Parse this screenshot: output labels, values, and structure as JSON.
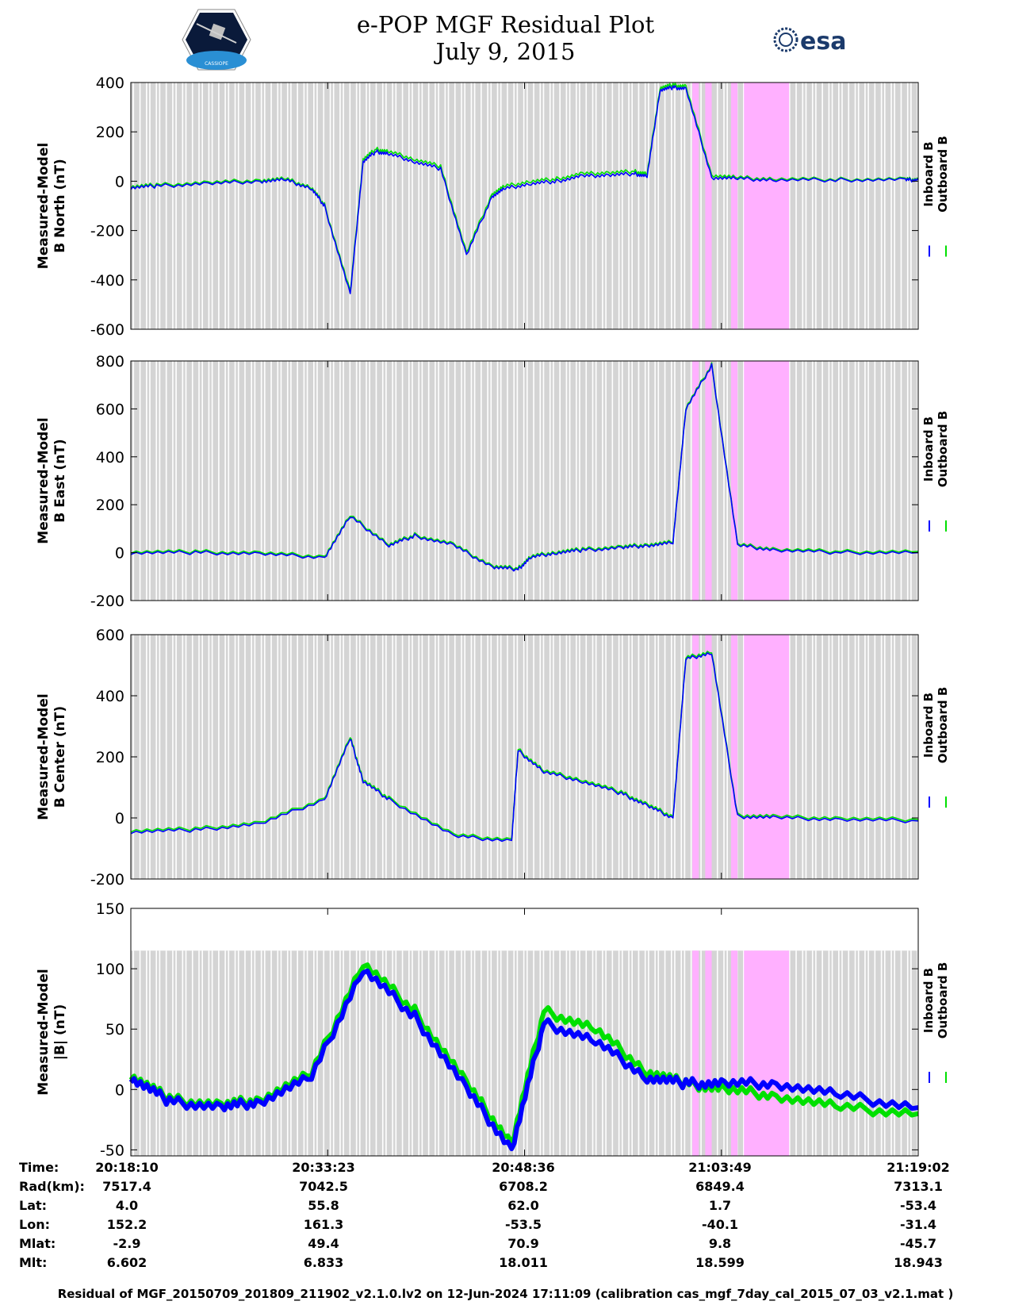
{
  "header": {
    "title": "e-POP MGF Residual Plot",
    "date": "July 9, 2015",
    "logo_left": "CASSIOPE",
    "logo_right": "esa"
  },
  "legend": {
    "inboard": "Inboard B",
    "outboard": "Outboard B"
  },
  "colors": {
    "inboard": "#0000ff",
    "outboard": "#00e000",
    "shade_gray": "#d4d4d4",
    "shade_pink": "#ffb0ff",
    "frame": "#000000"
  },
  "chart_data": [
    {
      "type": "line",
      "ylabel_line1": "Measured-Model",
      "ylabel_line2": "B North (nT)",
      "ylim": [
        -600,
        400
      ],
      "yticks": [
        -600,
        -400,
        -200,
        0,
        200,
        400
      ],
      "x_minutes": [
        0,
        2,
        6,
        10,
        12,
        14,
        15,
        17,
        18,
        19,
        20,
        22,
        24,
        26,
        28,
        29,
        31,
        33,
        35,
        37,
        39,
        40,
        41,
        42,
        43,
        45,
        47,
        50,
        55,
        60,
        61
      ],
      "series": [
        {
          "name": "Inboard B",
          "values": [
            -25,
            -20,
            -10,
            0,
            5,
            -30,
            -100,
            -460,
            80,
            120,
            110,
            80,
            50,
            -300,
            -60,
            -30,
            -10,
            0,
            20,
            25,
            30,
            20,
            370,
            380,
            375,
            15,
            10,
            5,
            5,
            5,
            5
          ]
        },
        {
          "name": "Outboard B",
          "values": [
            -20,
            -15,
            -5,
            5,
            10,
            -25,
            -95,
            -450,
            90,
            130,
            120,
            90,
            60,
            -290,
            -50,
            -20,
            0,
            10,
            30,
            35,
            40,
            30,
            380,
            390,
            385,
            25,
            15,
            10,
            8,
            8,
            8
          ]
        }
      ]
    },
    {
      "type": "line",
      "ylabel_line1": "Measured-Model",
      "ylabel_line2": "B East (nT)",
      "ylim": [
        -200,
        800
      ],
      "yticks": [
        -200,
        0,
        200,
        400,
        600,
        800
      ],
      "x_minutes": [
        0,
        5,
        10,
        15,
        17,
        20,
        22,
        25,
        28,
        30,
        31,
        33,
        35,
        38,
        40,
        42,
        43,
        45,
        47,
        50,
        55,
        61
      ],
      "series": [
        {
          "name": "Inboard B",
          "values": [
            0,
            0,
            -5,
            -20,
            150,
            30,
            70,
            30,
            -60,
            -70,
            -20,
            0,
            10,
            20,
            30,
            40,
            600,
            780,
            30,
            10,
            0,
            0
          ]
        },
        {
          "name": "Outboard B",
          "values": [
            5,
            5,
            0,
            -15,
            155,
            35,
            75,
            35,
            -55,
            -65,
            -15,
            5,
            15,
            25,
            35,
            45,
            605,
            785,
            35,
            15,
            5,
            5
          ]
        }
      ]
    },
    {
      "type": "line",
      "ylabel_line1": "Measured-Model",
      "ylabel_line2": "B Center (nT)",
      "ylim": [
        -200,
        600
      ],
      "yticks": [
        -200,
        0,
        200,
        400,
        600
      ],
      "x_minutes": [
        0,
        5,
        10,
        15,
        17,
        18,
        20,
        25,
        29.5,
        30,
        32,
        35,
        38,
        40,
        42,
        43,
        45,
        47,
        50,
        55,
        61
      ],
      "series": [
        {
          "name": "Inboard B",
          "values": [
            -45,
            -40,
            -20,
            60,
            260,
            120,
            60,
            -60,
            -75,
            220,
            150,
            120,
            80,
            40,
            0,
            520,
            540,
            5,
            0,
            -5,
            -10
          ]
        },
        {
          "name": "Outboard B",
          "values": [
            -40,
            -35,
            -15,
            65,
            265,
            125,
            65,
            -55,
            -70,
            225,
            155,
            125,
            85,
            45,
            5,
            525,
            545,
            10,
            5,
            0,
            -5
          ]
        }
      ]
    },
    {
      "type": "line",
      "ylabel_line1": "Measured-Model",
      "ylabel_line2": "|B| (nT)",
      "ylim": [
        -55,
        150
      ],
      "yticks": [
        -50,
        0,
        50,
        100,
        150
      ],
      "x_minutes": [
        0,
        3,
        7,
        10,
        14,
        18,
        22,
        26,
        29.5,
        32,
        36,
        40,
        43,
        46,
        50,
        55,
        61
      ],
      "series": [
        {
          "name": "Inboard B",
          "values": [
            10,
            -10,
            -15,
            -10,
            10,
            100,
            60,
            0,
            -50,
            55,
            40,
            10,
            5,
            5,
            5,
            -5,
            -15
          ]
        },
        {
          "name": "Outboard B",
          "values": [
            12,
            -8,
            -13,
            -8,
            13,
            105,
            65,
            5,
            -45,
            65,
            50,
            15,
            5,
            0,
            -5,
            -15,
            -20
          ]
        }
      ]
    }
  ],
  "x_axis": {
    "range_minutes": [
      0,
      61
    ],
    "pink_bands_minutes": [
      [
        43.5,
        44.0
      ],
      [
        44.5,
        45.0
      ],
      [
        46.5,
        47.0
      ],
      [
        47.5,
        51.0
      ]
    ]
  },
  "info_table": {
    "row_labels": [
      "Time:",
      "Rad(km):",
      "Lat:",
      "Lon:",
      "Mlat:",
      "Mlt:"
    ],
    "columns": [
      [
        "20:18:10",
        "7517.4",
        "4.0",
        "152.2",
        "-2.9",
        "6.602"
      ],
      [
        "20:33:23",
        "7042.5",
        "55.8",
        "161.3",
        "49.4",
        "6.833"
      ],
      [
        "20:48:36",
        "6708.2",
        "62.0",
        "-53.5",
        "70.9",
        "18.011"
      ],
      [
        "21:03:49",
        "6849.4",
        "1.7",
        "-40.1",
        "9.8",
        "18.599"
      ],
      [
        "21:19:02",
        "7313.1",
        "-53.4",
        "-31.4",
        "-45.7",
        "18.943"
      ]
    ]
  },
  "footer": "Residual of MGF_20150709_201809_211902_v2.1.0.lv2 on 12-Jun-2024 17:11:09 (calibration cas_mgf_7day_cal_2015_07_03_v2.1.mat )"
}
